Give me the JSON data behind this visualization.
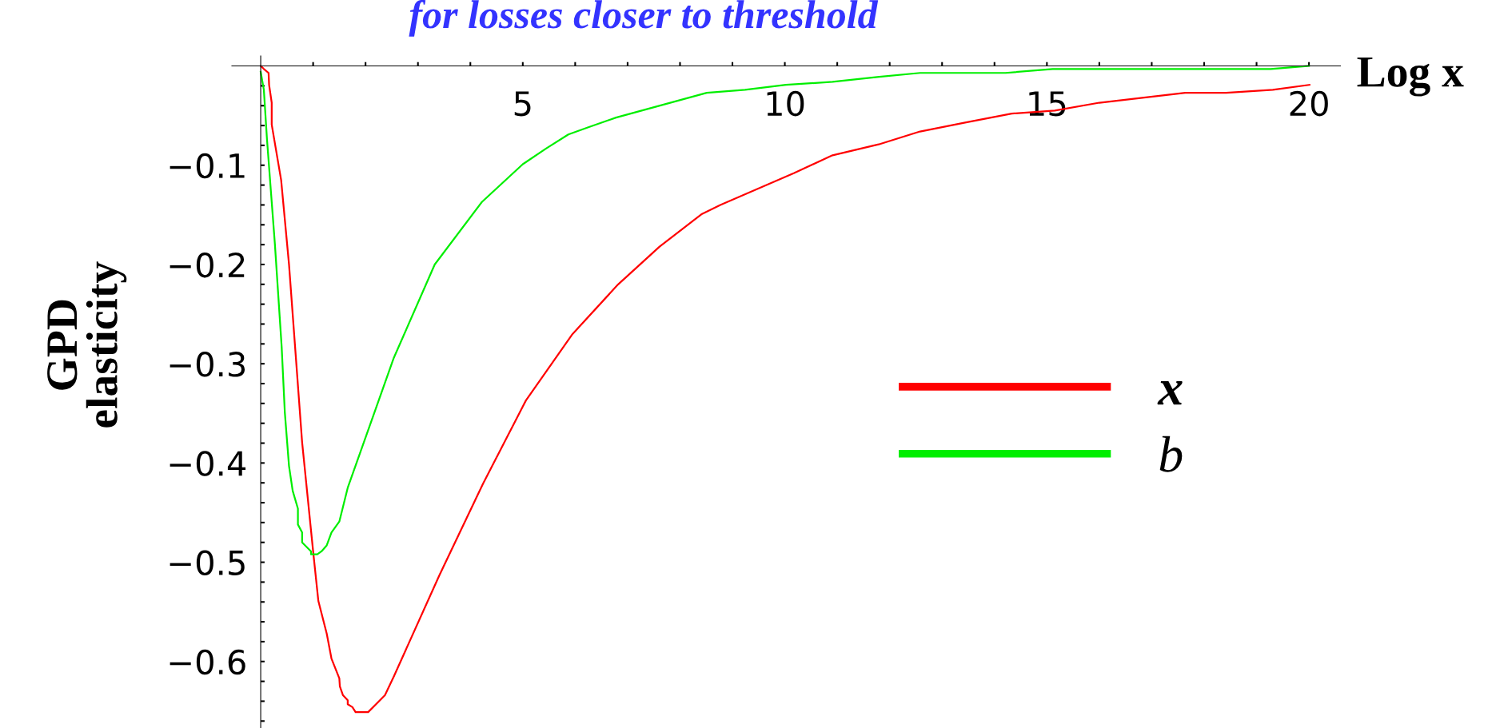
{
  "chart_data": {
    "type": "line",
    "title": "for losses closer to threshold",
    "xlabel": "Log x",
    "ylabel": "GPD\nelasticity",
    "xlim": [
      -0.55,
      20.6
    ],
    "ylim": [
      -0.667,
      0.01
    ],
    "xticks": [
      {
        "value": 1,
        "label": null
      },
      {
        "value": 2,
        "label": null
      },
      {
        "value": 3,
        "label": null
      },
      {
        "value": 4,
        "label": null
      },
      5,
      {
        "value": 6,
        "label": null
      },
      {
        "value": 7,
        "label": null
      },
      {
        "value": 8,
        "label": null
      },
      {
        "value": 9,
        "label": null
      },
      10,
      {
        "value": 11,
        "label": null
      },
      {
        "value": 12,
        "label": null
      },
      {
        "value": 13,
        "label": null
      },
      {
        "value": 14,
        "label": null
      },
      15,
      {
        "value": 16,
        "label": null
      },
      {
        "value": 17,
        "label": null
      },
      {
        "value": 18,
        "label": null
      },
      {
        "value": 19,
        "label": null
      },
      20
    ],
    "yticks": [
      {
        "value": -0.66,
        "label": null
      },
      {
        "value": -0.64,
        "label": null
      },
      {
        "value": -0.62,
        "label": null
      },
      {
        "value": -0.6,
        "label": "−0.6"
      },
      {
        "value": -0.58,
        "label": null
      },
      {
        "value": -0.56,
        "label": null
      },
      {
        "value": -0.54,
        "label": null
      },
      {
        "value": -0.52,
        "label": null
      },
      {
        "value": -0.5,
        "label": "−0.5"
      },
      {
        "value": -0.48,
        "label": null
      },
      {
        "value": -0.46,
        "label": null
      },
      {
        "value": -0.44,
        "label": null
      },
      {
        "value": -0.42,
        "label": null
      },
      {
        "value": -0.4,
        "label": "−0.4"
      },
      {
        "value": -0.38,
        "label": null
      },
      {
        "value": -0.36,
        "label": null
      },
      {
        "value": -0.34,
        "label": null
      },
      {
        "value": -0.32,
        "label": null
      },
      {
        "value": -0.3,
        "label": "−0.3"
      },
      {
        "value": -0.28,
        "label": null
      },
      {
        "value": -0.26,
        "label": null
      },
      {
        "value": -0.24,
        "label": null
      },
      {
        "value": -0.22,
        "label": null
      },
      {
        "value": -0.2,
        "label": "−0.2"
      },
      {
        "value": -0.18,
        "label": null
      },
      {
        "value": -0.16,
        "label": null
      },
      {
        "value": -0.14,
        "label": null
      },
      {
        "value": -0.12,
        "label": null
      },
      {
        "value": -0.1,
        "label": "−0.1"
      },
      {
        "value": -0.08,
        "label": null
      },
      {
        "value": -0.06,
        "label": null
      },
      {
        "value": -0.04,
        "label": null
      },
      {
        "value": -0.02,
        "label": null
      }
    ],
    "grid": false,
    "legend": "right",
    "marker": "none",
    "line_style": "solid",
    "series": [
      {
        "name": "x",
        "color": "#ff0000",
        "x": [
          0,
          0.06,
          0.15,
          0.16,
          0.21,
          0.21,
          0.39,
          0.54,
          0.79,
          1.0,
          1.1,
          1.26,
          1.35,
          1.5,
          1.51,
          1.57,
          1.66,
          1.66,
          1.75,
          1.81,
          2.05,
          2.2,
          2.37,
          2.54,
          3.41,
          4.24,
          5.06,
          5.95,
          6.82,
          7.61,
          8.42,
          8.77,
          10.17,
          10.91,
          11.79,
          12.58,
          13.44,
          14.33,
          15.15,
          16.0,
          17.64,
          18.42,
          19.31,
          20.01
        ],
        "values": [
          0,
          -0.003,
          -0.007,
          -0.019,
          -0.037,
          -0.059,
          -0.115,
          -0.2,
          -0.379,
          -0.489,
          -0.539,
          -0.572,
          -0.597,
          -0.617,
          -0.625,
          -0.634,
          -0.639,
          -0.643,
          -0.646,
          -0.651,
          -0.651,
          -0.643,
          -0.634,
          -0.615,
          -0.513,
          -0.421,
          -0.337,
          -0.27,
          -0.22,
          -0.182,
          -0.149,
          -0.14,
          -0.108,
          -0.09,
          -0.079,
          -0.066,
          -0.057,
          -0.048,
          -0.045,
          -0.037,
          -0.027,
          -0.027,
          -0.024,
          -0.019
        ]
      },
      {
        "name": "b",
        "color": "#00ee00",
        "x": [
          0,
          0.06,
          0.12,
          0.27,
          0.4,
          0.46,
          0.54,
          0.61,
          0.71,
          0.71,
          0.79,
          0.79,
          0.96,
          0.96,
          1.08,
          1.16,
          1.26,
          1.35,
          1.5,
          1.66,
          2.54,
          3.32,
          4.22,
          5.0,
          5.45,
          5.87,
          6.24,
          6.78,
          8.51,
          9.24,
          10.02,
          10.91,
          11.8,
          12.58,
          14.21,
          15.11,
          19.27,
          20.0
        ],
        "values": [
          -0.006,
          -0.024,
          -0.074,
          -0.179,
          -0.283,
          -0.349,
          -0.403,
          -0.428,
          -0.446,
          -0.462,
          -0.47,
          -0.48,
          -0.489,
          -0.492,
          -0.492,
          -0.489,
          -0.483,
          -0.47,
          -0.459,
          -0.425,
          -0.294,
          -0.2,
          -0.137,
          -0.099,
          -0.083,
          -0.069,
          -0.062,
          -0.052,
          -0.027,
          -0.024,
          -0.019,
          -0.016,
          -0.011,
          -0.007,
          -0.007,
          -0.003,
          -0.003,
          0.0
        ]
      }
    ]
  }
}
